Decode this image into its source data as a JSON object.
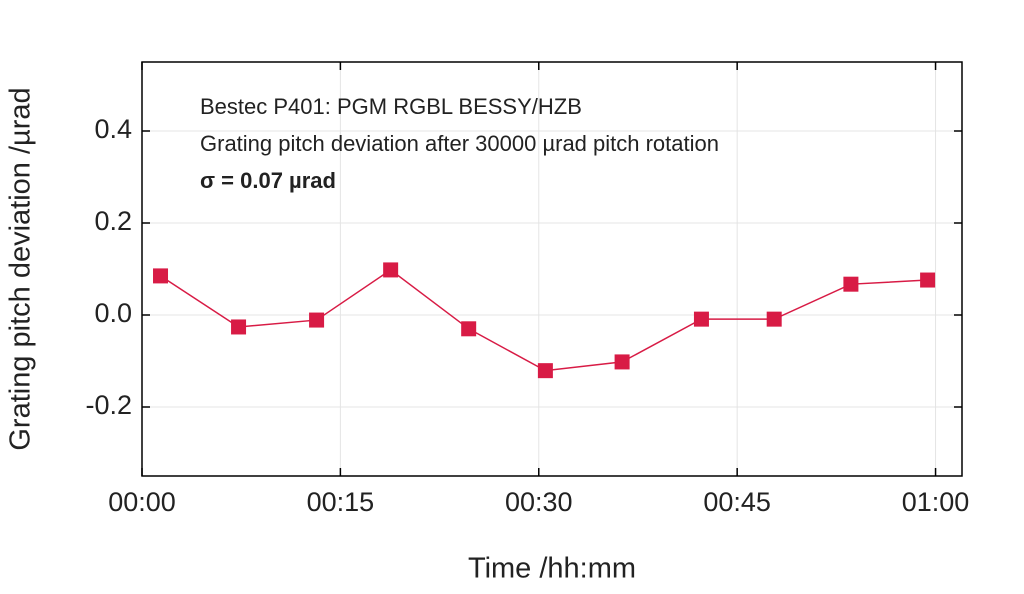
{
  "chart_data": {
    "type": "line",
    "annotations": [
      "Bestec P401: PGM RGBL BESSY/HZB",
      "Grating pitch deviation after 30000 µrad pitch rotation",
      "σ = 0.07 µrad"
    ],
    "x_label": "Time /hh:mm",
    "y_label": "Grating pitch deviation /µrad",
    "x": [
      1.4,
      7.3,
      13.2,
      18.8,
      24.7,
      30.5,
      36.3,
      42.3,
      47.8,
      53.6,
      59.4
    ],
    "series": [
      {
        "color": "#d81b45",
        "values": [
          0.085,
          -0.026,
          -0.011,
          0.098,
          -0.03,
          -0.121,
          -0.102,
          -0.009,
          -0.009,
          0.067,
          0.076
        ]
      }
    ],
    "xlim": [
      0,
      62
    ],
    "xticks": [
      {
        "value": 0,
        "label": "00:00"
      },
      {
        "value": 15,
        "label": "00:15"
      },
      {
        "value": 30,
        "label": "00:30"
      },
      {
        "value": 45,
        "label": "00:45"
      },
      {
        "value": 60,
        "label": "01:00"
      }
    ],
    "ylim": [
      -0.35,
      0.55
    ],
    "yticks": [
      -0.2,
      {
        "value": 0,
        "label": "0.0"
      },
      0.2,
      0.4
    ],
    "grid": true
  }
}
